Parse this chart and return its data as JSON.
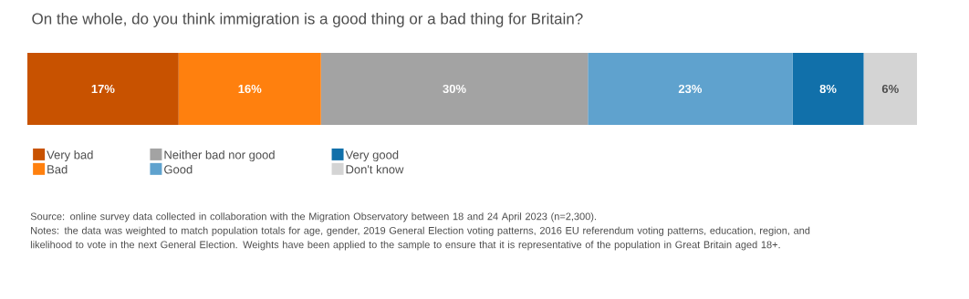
{
  "chart_data": {
    "type": "bar",
    "title": "On the whole, do you think immigration is a good thing or a bad thing for Britain?",
    "orientation": "horizontal",
    "stacked": true,
    "categories": [
      null
    ],
    "legend": "bottom",
    "series": [
      {
        "name": "Very bad",
        "color": "#c85200",
        "values": [
          17
        ],
        "value_labels": [
          "17%"
        ]
      },
      {
        "name": "Bad",
        "color": "#ff800e",
        "values": [
          16
        ],
        "value_labels": [
          "16%"
        ]
      },
      {
        "name": "Neither bad nor good",
        "color": "#a3a3a3",
        "values": [
          30
        ],
        "value_labels": [
          "30%"
        ]
      },
      {
        "name": "Good",
        "color": "#5fa2ce",
        "values": [
          23
        ],
        "value_labels": [
          "23%"
        ]
      },
      {
        "name": "Very good",
        "color": "#1170aa",
        "values": [
          8
        ],
        "value_labels": [
          "8%"
        ]
      },
      {
        "name": "Don't know",
        "color": "#d4d4d4",
        "values": [
          6
        ],
        "value_labels": [
          "6%"
        ]
      }
    ],
    "annotations": [
      "Source: online survey data collected in collaboration with the Migration Observatory between 18 and 24 April 2023 (n=2,300).",
      "Notes: the data was weighted to match population totals for age, gender, 2019 General Election voting patterns, 2016 EU referendum voting patterns, education, region, and likelihood to vote in the next General Election. Weights have been applied to the sample to ensure that it is representative of the population in Great Britain aged 18+."
    ]
  }
}
